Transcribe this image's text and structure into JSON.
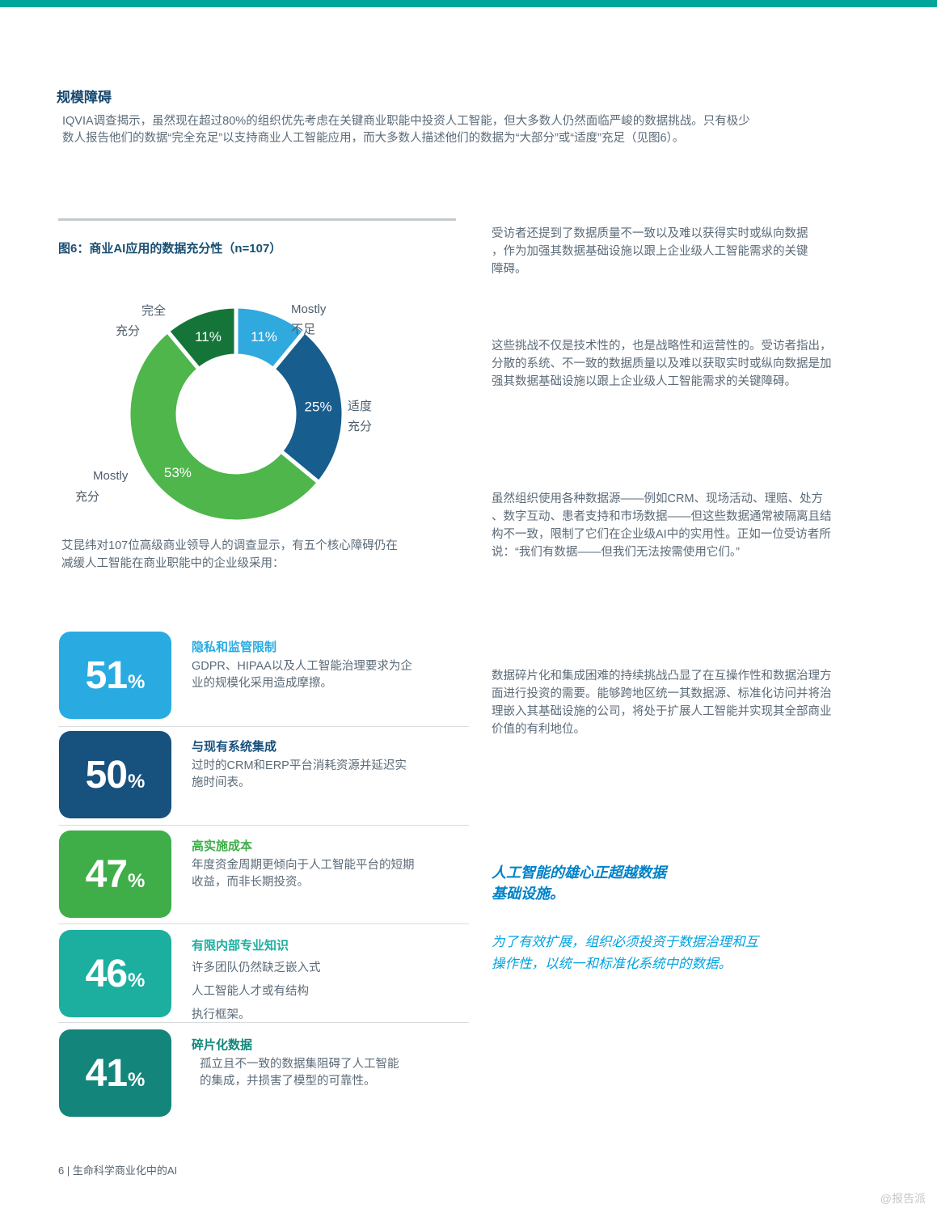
{
  "page": {
    "top_bar_color": "#00A69B",
    "footer_text": "6 | 生命科学商业化中的AI",
    "watermark": "@报告派"
  },
  "intro": {
    "heading": "规模障碍",
    "body": "IQVIA调查揭示，虽然现在超过80%的组织优先考虑在关键商业职能中投资人工智能，但大多数人仍然面临严峻的数据挑战。只有极少\n数人报告他们的数据“完全充足”以支持商业人工智能应用，而大多数人描述他们的数据为“大部分”或“适度”充足（见图6）。"
  },
  "chart_data": {
    "type": "pie",
    "donut": true,
    "title": "图6：商业AI应用的数据充分性（n=107）",
    "n": 107,
    "start_angle": 0,
    "legend_position": "outside-labels",
    "slices": [
      {
        "label": "Mostly 不足",
        "value": 11,
        "color": "#2FA9DE"
      },
      {
        "label": "适度充分",
        "value": 25,
        "color": "#175D8D"
      },
      {
        "label": "Mostly 充分",
        "value": 53,
        "color": "#4EB64B"
      },
      {
        "label": "完全充分",
        "value": 11,
        "color": "#157539"
      }
    ],
    "outer_labels": {
      "top_left": [
        "完全",
        "充分"
      ],
      "top_right": [
        "Mostly",
        "不足"
      ],
      "right": [
        "适度",
        "充分"
      ],
      "bottom_left": [
        "Mostly",
        "充分"
      ]
    }
  },
  "left_column": {
    "survey_note": "艾昆纬对107位高级商业领导人的调查显示，有五个核心障碍仍在\n减缓人工智能在商业职能中的企业级采用：",
    "stats": [
      {
        "value": "51",
        "unit": "%",
        "color": "#29ABE2",
        "title": "隐私和监管限制",
        "desc": "GDPR、HIPAA以及人工智能治理要求为企\n业的规模化采用造成摩擦。"
      },
      {
        "value": "50",
        "unit": "%",
        "color": "#17517E",
        "title": "与现有系统集成",
        "desc": "过时的CRM和ERP平台消耗资源并延迟实\n施时间表。"
      },
      {
        "value": "47",
        "unit": "%",
        "color": "#3FAE49",
        "title": "高实施成本",
        "desc": "年度资金周期更倾向于人工智能平台的短期\n收益，而非长期投资。"
      },
      {
        "value": "46",
        "unit": "%",
        "color": "#1CAFA0",
        "title": "有限内部专业知识",
        "desc": "许多团队仍然缺乏嵌入式\n人工智能人才或有结构\n执行框架。"
      },
      {
        "value": "41",
        "unit": "%",
        "color": "#13857A",
        "title": "碎片化数据",
        "desc": "孤立且不一致的数据集阻碍了人工智能\n的集成，并损害了模型的可靠性。"
      }
    ]
  },
  "right_column": {
    "paragraphs": [
      "受访者还提到了数据质量不一致以及难以获得实时或纵向数据\n，作为加强其数据基础设施以跟上企业级人工智能需求的关键\n障碍。",
      "这些挑战不仅是技术性的，也是战略性和运营性的。受访者指出，\n分散的系统、不一致的数据质量以及难以获取实时或纵向数据是加\n强其数据基础设施以跟上企业级人工智能需求的关键障碍。",
      "虽然组织使用各种数据源——例如CRM、现场活动、理赔、处方\n、数字互动、患者支持和市场数据——但这些数据通常被隔离且结\n构不一致，限制了它们在企业级AI中的实用性。正如一位受访者所\n说：“我们有数据——但我们无法按需使用它们。”",
      "数据碎片化和集成困难的持续挑战凸显了在互操作性和数据治理方\n面进行投资的需要。能够跨地区统一其数据源、标准化访问并将治\n理嵌入其基础设施的公司，将处于扩展人工智能并实现其全部商业\n价值的有利地位。"
    ],
    "pull_quote": {
      "title": "人工智能的雄心正超越数据\n基础设施。",
      "title_color": "#0082C8",
      "body": "为了有效扩展，组织必须投资于数据治理和互\n操作性，以统一和标准化系统中的数据。",
      "body_color": "#00A3E0"
    }
  }
}
